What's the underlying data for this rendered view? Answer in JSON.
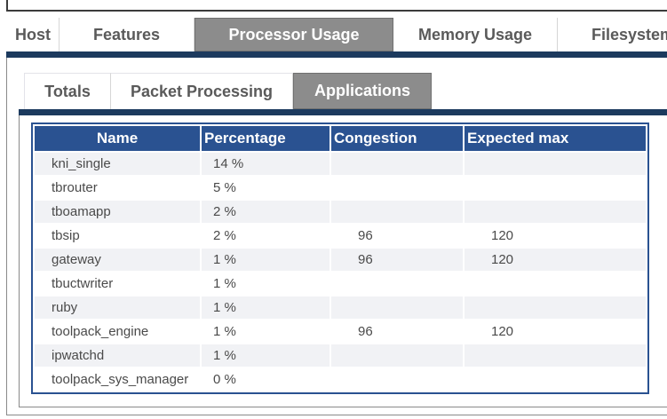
{
  "colors": {
    "navy_bar": "#1c3a5e",
    "table_header_blue": "#2a5291",
    "selected_tab_gray": "#8c8c8c",
    "alt_row_gray": "#f1f2f5",
    "tab_text_gray": "#5a5a5a"
  },
  "main_tabs": {
    "items": [
      {
        "label": "Host",
        "selected": false
      },
      {
        "label": "Features",
        "selected": false
      },
      {
        "label": "Processor Usage",
        "selected": true
      },
      {
        "label": "Memory Usage",
        "selected": false
      },
      {
        "label": "Filesystem",
        "selected": false
      }
    ]
  },
  "sub_tabs": {
    "items": [
      {
        "label": "Totals",
        "selected": false
      },
      {
        "label": "Packet Processing",
        "selected": false
      },
      {
        "label": "Applications",
        "selected": true
      }
    ]
  },
  "table": {
    "columns": [
      "Name",
      "Percentage",
      "Congestion",
      "Expected max"
    ],
    "rows": [
      {
        "name": "kni_single",
        "percentage": "14 %",
        "congestion": "",
        "expected_max": ""
      },
      {
        "name": "tbrouter",
        "percentage": "5 %",
        "congestion": "",
        "expected_max": ""
      },
      {
        "name": "tboamapp",
        "percentage": "2 %",
        "congestion": "",
        "expected_max": ""
      },
      {
        "name": "tbsip",
        "percentage": "2 %",
        "congestion": "96",
        "expected_max": "120"
      },
      {
        "name": "gateway",
        "percentage": "1 %",
        "congestion": "96",
        "expected_max": "120"
      },
      {
        "name": "tbuctwriter",
        "percentage": "1 %",
        "congestion": "",
        "expected_max": ""
      },
      {
        "name": "ruby",
        "percentage": "1 %",
        "congestion": "",
        "expected_max": ""
      },
      {
        "name": "toolpack_engine",
        "percentage": "1 %",
        "congestion": "96",
        "expected_max": "120"
      },
      {
        "name": "ipwatchd",
        "percentage": "1 %",
        "congestion": "",
        "expected_max": ""
      },
      {
        "name": "toolpack_sys_manager",
        "percentage": "0 %",
        "congestion": "",
        "expected_max": ""
      }
    ]
  }
}
